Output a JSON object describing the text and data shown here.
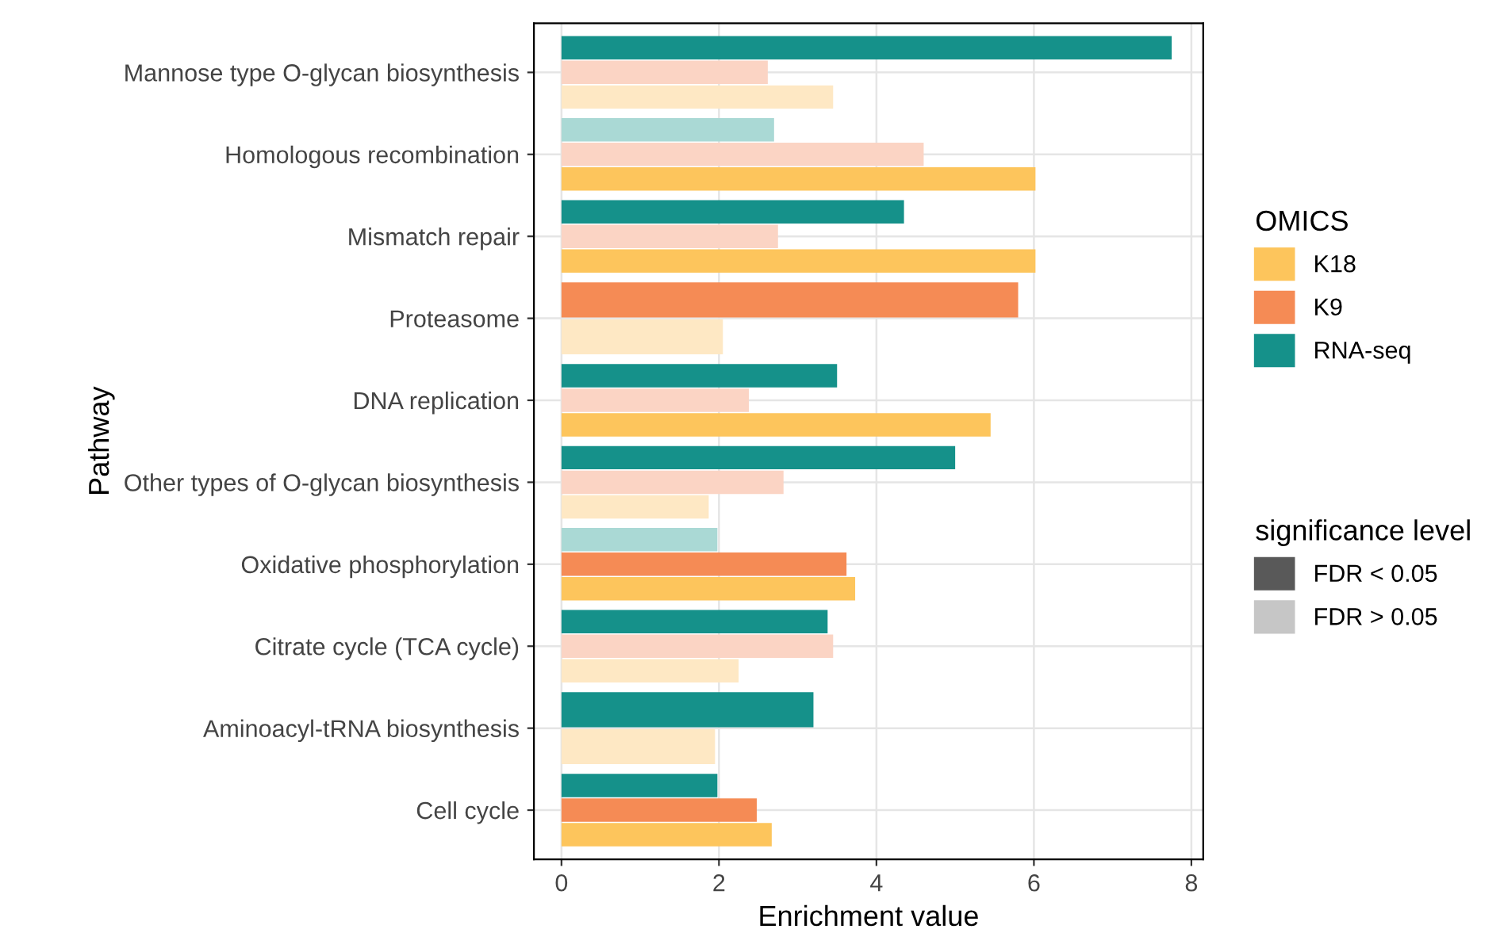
{
  "chart_data": {
    "type": "bar",
    "orientation": "horizontal",
    "xlabel": "Enrichment value",
    "ylabel": "Pathway",
    "legend_title": "OMICS",
    "legend": "right",
    "grid": true,
    "categories": [
      "Mannose type O-glycan biosynthesis",
      "Homologous recombination",
      "Mismatch repair",
      "Proteasome",
      "DNA replication",
      "Other types of O-glycan biosynthesis",
      "Oxidative phosphorylation",
      "Citrate cycle (TCA cycle)",
      "Aminoacyl-tRNA biosynthesis",
      "Cell cycle"
    ],
    "xlim": [
      -0.35,
      8.15
    ],
    "xticks": [
      0,
      2,
      4,
      6,
      8
    ],
    "series": [
      {
        "name": "K18",
        "color": "#fdc55c",
        "values": [
          3.45,
          6.02,
          6.02,
          2.05,
          5.45,
          1.87,
          3.73,
          2.25,
          1.95,
          2.67
        ],
        "colors": [
          "#fee8c4",
          "#fdc55c",
          "#fdc55c",
          "#fee8c4",
          "#fdc55c",
          "#fee8c4",
          "#fdc55c",
          "#fee8c4",
          "#fee8c4",
          "#fdc55c"
        ]
      },
      {
        "name": "K9",
        "color": "#f58b55",
        "values": [
          2.62,
          4.6,
          2.75,
          5.8,
          2.38,
          2.82,
          3.62,
          3.45,
          null,
          2.48
        ],
        "colors": [
          "#fbd4c4",
          "#fbd4c4",
          "#fbd4c4",
          "#f58b55",
          "#fbd4c4",
          "#fbd4c4",
          "#f58b55",
          "#fbd4c4",
          null,
          "#f58b55"
        ]
      },
      {
        "name": "RNA-seq",
        "color": "#15918a",
        "values": [
          7.75,
          2.7,
          4.35,
          null,
          3.5,
          5.0,
          1.98,
          3.38,
          3.2,
          1.98
        ],
        "colors": [
          "#15918a",
          "#aad9d5",
          "#15918a",
          null,
          "#15918a",
          "#15918a",
          "#aad9d5",
          "#15918a",
          "#15918a",
          "#15918a"
        ]
      }
    ],
    "annotations": [
      "significance level",
      "FDR < 0.05",
      "FDR > 0.05"
    ]
  }
}
